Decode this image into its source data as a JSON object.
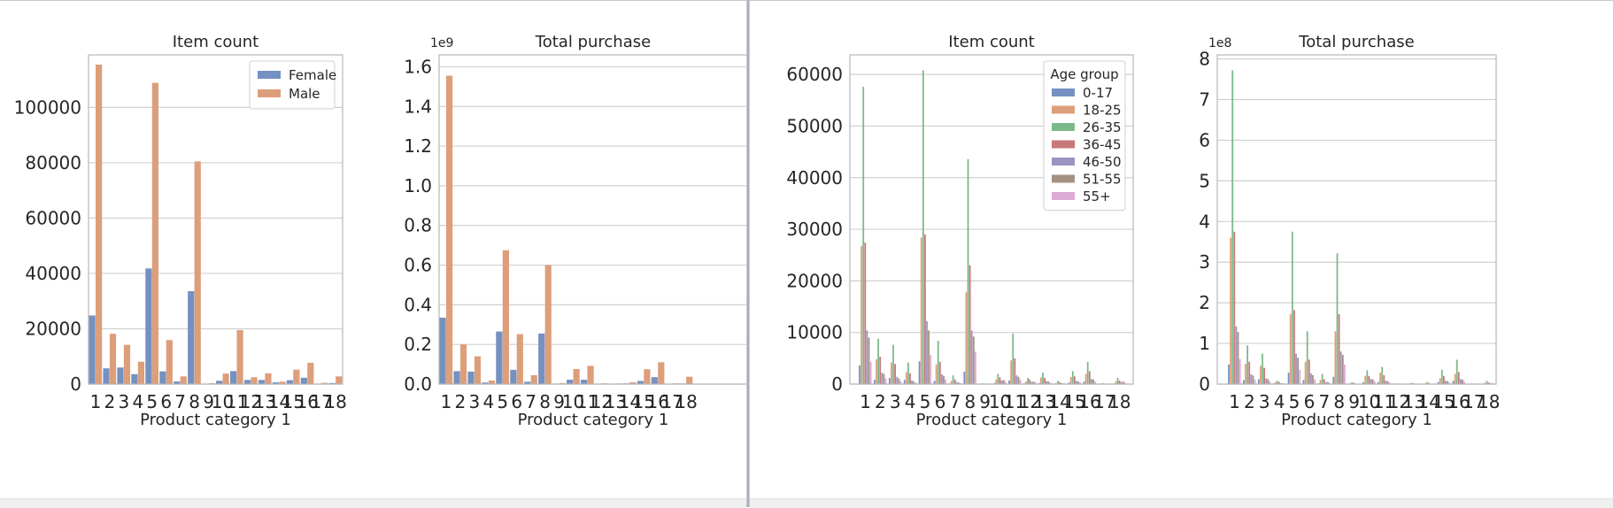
{
  "colors": {
    "female": "#7591c1",
    "male": "#dd9e7a",
    "age": [
      "#7591c1",
      "#dd9e7a",
      "#7cb98a",
      "#c9787a",
      "#9d93c0",
      "#a49181",
      "#dcaad6"
    ]
  },
  "chart_data": [
    {
      "type": "bar",
      "title": "Item count",
      "xlabel": "Product category 1",
      "ylabel": "",
      "categories": [
        "1",
        "2",
        "3",
        "4",
        "5",
        "6",
        "7",
        "8",
        "9",
        "10",
        "11",
        "12",
        "13",
        "14",
        "15",
        "16",
        "17",
        "18"
      ],
      "series": [
        {
          "name": "Female",
          "values": [
            24800,
            5700,
            6000,
            3600,
            41800,
            4600,
            950,
            33600,
            70,
            1200,
            4700,
            1500,
            1500,
            620,
            1400,
            2300,
            120,
            390
          ]
        },
        {
          "name": "Male",
          "values": [
            115500,
            18200,
            14200,
            8100,
            108900,
            15900,
            2800,
            80500,
            340,
            3800,
            19500,
            2500,
            3900,
            870,
            5200,
            7700,
            460,
            2800
          ]
        }
      ],
      "ylim": [
        0,
        119000
      ],
      "yticks": [
        0,
        20000,
        40000,
        60000,
        80000,
        100000
      ],
      "ytick_labels": [
        "0",
        "20000",
        "40000",
        "60000",
        "80000",
        "100000"
      ],
      "legend": {
        "entries": [
          "Female",
          "Male"
        ],
        "placement": "top-right"
      },
      "grid": true
    },
    {
      "type": "bar",
      "title": "Total purchase",
      "xlabel": "Product category 1",
      "ylabel": "",
      "offset_label": "1e9",
      "categories": [
        "1",
        "2",
        "3",
        "4",
        "5",
        "6",
        "7",
        "8",
        "9",
        "10",
        "11",
        "12",
        "13",
        "14",
        "15",
        "16",
        "17",
        "18"
      ],
      "series": [
        {
          "name": "Female",
          "values": [
            0.335,
            0.065,
            0.063,
            0.008,
            0.265,
            0.072,
            0.012,
            0.255,
            0.002,
            0.022,
            0.022,
            0.001,
            0.001,
            0.004,
            0.016,
            0.035,
            0.001,
            0.003
          ]
        },
        {
          "name": "Male",
          "values": [
            1.555,
            0.2,
            0.14,
            0.018,
            0.675,
            0.252,
            0.045,
            0.6,
            0.005,
            0.076,
            0.092,
            0.004,
            0.003,
            0.009,
            0.075,
            0.11,
            0.004,
            0.037
          ]
        }
      ],
      "ylim": [
        0,
        1.66
      ],
      "yticks": [
        0,
        0.2,
        0.4,
        0.6,
        0.8,
        1.0,
        1.2,
        1.4,
        1.6
      ],
      "ytick_labels": [
        "0.0",
        "0.2",
        "0.4",
        "0.6",
        "0.8",
        "1.0",
        "1.2",
        "1.4",
        "1.6"
      ],
      "grid": true
    },
    {
      "type": "bar",
      "title": "Item count",
      "xlabel": "Product category 1",
      "ylabel": "",
      "categories": [
        "1",
        "2",
        "3",
        "4",
        "5",
        "6",
        "7",
        "8",
        "9",
        "10",
        "11",
        "12",
        "13",
        "14",
        "15",
        "16",
        "17",
        "18"
      ],
      "series": [
        {
          "name": "0-17",
          "values": [
            3600,
            800,
            1200,
            800,
            4400,
            600,
            100,
            2400,
            20,
            200,
            700,
            150,
            200,
            80,
            300,
            500,
            20,
            100
          ]
        },
        {
          "name": "18-25",
          "values": [
            26800,
            4800,
            4200,
            2300,
            28400,
            3800,
            600,
            17800,
            60,
            900,
            4600,
            500,
            1300,
            200,
            1400,
            2000,
            90,
            500
          ]
        },
        {
          "name": "26-35",
          "values": [
            57600,
            8800,
            7600,
            4200,
            60800,
            8400,
            1700,
            43600,
            150,
            2000,
            9800,
            1200,
            2200,
            600,
            2500,
            4300,
            200,
            1200
          ]
        },
        {
          "name": "36-45",
          "values": [
            27400,
            5300,
            3900,
            2100,
            29000,
            4300,
            900,
            23000,
            100,
            1300,
            5000,
            900,
            1200,
            400,
            1500,
            2500,
            100,
            700
          ]
        },
        {
          "name": "46-50",
          "values": [
            10400,
            2200,
            1400,
            700,
            12200,
            1900,
            400,
            10400,
            40,
            700,
            1700,
            400,
            600,
            200,
            600,
            1000,
            60,
            400
          ]
        },
        {
          "name": "51-55",
          "values": [
            9000,
            2000,
            1100,
            500,
            10400,
            1600,
            300,
            9200,
            30,
            800,
            1400,
            500,
            500,
            150,
            500,
            900,
            50,
            500
          ]
        },
        {
          "name": "55+",
          "values": [
            4300,
            1100,
            600,
            300,
            5600,
            900,
            200,
            6300,
            20,
            500,
            800,
            400,
            300,
            100,
            300,
            500,
            40,
            300
          ]
        }
      ],
      "ylim": [
        0,
        63800
      ],
      "yticks": [
        0,
        10000,
        20000,
        30000,
        40000,
        50000,
        60000
      ],
      "ytick_labels": [
        "0",
        "10000",
        "20000",
        "30000",
        "40000",
        "50000",
        "60000"
      ],
      "legend": {
        "title": "Age group",
        "entries": [
          "0-17",
          "18-25",
          "26-35",
          "36-45",
          "46-50",
          "51-55",
          "55+"
        ],
        "placement": "top-right"
      },
      "grid": true
    },
    {
      "type": "bar",
      "title": "Total purchase",
      "xlabel": "Product category 1",
      "ylabel": "",
      "offset_label": "1e8",
      "categories": [
        "1",
        "2",
        "3",
        "4",
        "5",
        "6",
        "7",
        "8",
        "9",
        "10",
        "11",
        "12",
        "13",
        "14",
        "15",
        "16",
        "17",
        "18"
      ],
      "series": [
        {
          "name": "0-17",
          "values": [
            0.48,
            0.1,
            0.12,
            0.02,
            0.28,
            0.1,
            0.02,
            0.18,
            0.01,
            0.05,
            0.05,
            0.01,
            0.01,
            0.01,
            0.05,
            0.08,
            0.01,
            0.01
          ]
        },
        {
          "name": "18-25",
          "values": [
            3.6,
            0.5,
            0.45,
            0.05,
            1.72,
            0.55,
            0.1,
            1.3,
            0.02,
            0.2,
            0.28,
            0.01,
            0.02,
            0.02,
            0.15,
            0.25,
            0.01,
            0.03
          ]
        },
        {
          "name": "26-35",
          "values": [
            7.72,
            0.95,
            0.75,
            0.08,
            3.75,
            1.3,
            0.25,
            3.22,
            0.05,
            0.34,
            0.42,
            0.02,
            0.03,
            0.05,
            0.35,
            0.6,
            0.02,
            0.08
          ]
        },
        {
          "name": "36-45",
          "values": [
            3.75,
            0.55,
            0.4,
            0.05,
            1.82,
            0.6,
            0.12,
            1.72,
            0.03,
            0.2,
            0.22,
            0.01,
            0.02,
            0.03,
            0.2,
            0.3,
            0.01,
            0.04
          ]
        },
        {
          "name": "46-50",
          "values": [
            1.42,
            0.24,
            0.14,
            0.02,
            0.75,
            0.26,
            0.05,
            0.8,
            0.01,
            0.12,
            0.08,
            0.01,
            0.01,
            0.01,
            0.08,
            0.12,
            0.01,
            0.02
          ]
        },
        {
          "name": "51-55",
          "values": [
            1.28,
            0.21,
            0.12,
            0.02,
            0.65,
            0.22,
            0.05,
            0.72,
            0.01,
            0.12,
            0.07,
            0.01,
            0.01,
            0.01,
            0.07,
            0.11,
            0.01,
            0.02
          ]
        },
        {
          "name": "55+",
          "values": [
            0.62,
            0.11,
            0.07,
            0.01,
            0.35,
            0.11,
            0.03,
            0.48,
            0.01,
            0.07,
            0.04,
            0.01,
            0.01,
            0.01,
            0.04,
            0.06,
            0.01,
            0.01
          ]
        }
      ],
      "ylim": [
        0,
        8.1
      ],
      "yticks": [
        0,
        1,
        2,
        3,
        4,
        5,
        6,
        7,
        8
      ],
      "ytick_labels": [
        "0",
        "1",
        "2",
        "3",
        "4",
        "5",
        "6",
        "7",
        "8"
      ],
      "grid": true
    }
  ]
}
